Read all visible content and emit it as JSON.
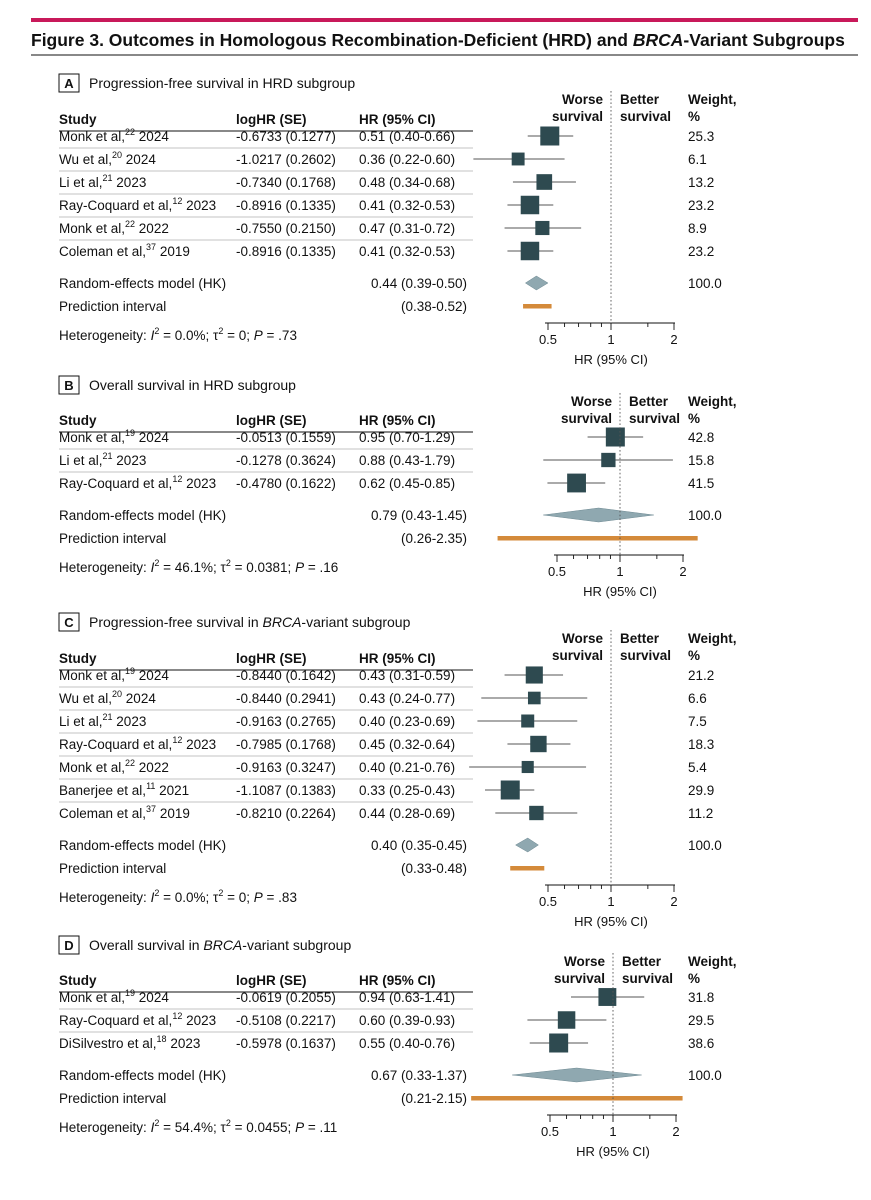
{
  "figure": {
    "title_parts": [
      {
        "text": "Figure 3. Outcomes in Homologous Recombination-Deficient (HRD) and ",
        "italic": false
      },
      {
        "text": "BRCA",
        "italic": true
      },
      {
        "text": "-Variant Subgroups",
        "italic": false
      }
    ],
    "accent_color": "#c8195a"
  },
  "colors": {
    "study_box": "#2e4a50",
    "pooled_diamond": "#8fa8b0",
    "prediction_interval": "#d48a3a"
  },
  "chart_data": [
    {
      "type": "forest",
      "panel_letter": "A",
      "title_parts": [
        {
          "text": "Progression-free survival in HRD subgroup",
          "italic": false
        }
      ],
      "columns": {
        "study": "Study",
        "loghr": "logHR (SE)",
        "hr": "HR (95% CI)",
        "weight": "Weight,",
        "weight_unit": "%"
      },
      "side_labels": {
        "left": [
          "Worse",
          "survival"
        ],
        "right": [
          "Better",
          "survival"
        ]
      },
      "xlabel": "HR (95% CI)",
      "x_scale": "log",
      "xlim": [
        0.34,
        2.25
      ],
      "ticks": [
        0.5,
        1,
        2
      ],
      "tick_labels": [
        "0.5",
        "1",
        "2"
      ],
      "null_value": 1,
      "studies": [
        {
          "author": "Monk et al,",
          "ref": "22",
          "year": " 2024",
          "loghr": "-0.6733 (0.1277)",
          "hr_text": "0.51 (0.40-0.66)",
          "hr": 0.51,
          "lo": 0.4,
          "hi": 0.66,
          "weight": 25.3,
          "weight_text": "25.3"
        },
        {
          "author": "Wu et al,",
          "ref": "20",
          "year": " 2024",
          "loghr": "-1.0217 (0.2602)",
          "hr_text": "0.36 (0.22-0.60)",
          "hr": 0.36,
          "lo": 0.22,
          "hi": 0.6,
          "weight": 6.1,
          "weight_text": "6.1"
        },
        {
          "author": "Li et al,",
          "ref": "21",
          "year": " 2023",
          "loghr": "-0.7340 (0.1768)",
          "hr_text": "0.48 (0.34-0.68)",
          "hr": 0.48,
          "lo": 0.34,
          "hi": 0.68,
          "weight": 13.2,
          "weight_text": "13.2"
        },
        {
          "author": "Ray-Coquard et al,",
          "ref": "12",
          "year": " 2023",
          "loghr": "-0.8916 (0.1335)",
          "hr_text": "0.41 (0.32-0.53)",
          "hr": 0.41,
          "lo": 0.32,
          "hi": 0.53,
          "weight": 23.2,
          "weight_text": "23.2"
        },
        {
          "author": "Monk et al,",
          "ref": "22",
          "year": " 2022",
          "loghr": "-0.7550 (0.2150)",
          "hr_text": "0.47 (0.31-0.72)",
          "hr": 0.47,
          "lo": 0.31,
          "hi": 0.72,
          "weight": 8.9,
          "weight_text": "8.9"
        },
        {
          "author": "Coleman et al,",
          "ref": "37",
          "year": " 2019",
          "loghr": "-0.8916 (0.1335)",
          "hr_text": "0.41 (0.32-0.53)",
          "hr": 0.41,
          "lo": 0.32,
          "hi": 0.53,
          "weight": 23.2,
          "weight_text": "23.2"
        }
      ],
      "pooled": {
        "label": "Random-effects model (HK)",
        "hr_text": "0.44 (0.39-0.50)",
        "hr": 0.44,
        "lo": 0.39,
        "hi": 0.5,
        "weight_text": "100.0"
      },
      "prediction": {
        "label": "Prediction interval",
        "text": "(0.38-0.52)",
        "lo": 0.38,
        "hi": 0.52
      },
      "heterogeneity": {
        "prefix": "Heterogeneity: ",
        "i2_symbol": "I",
        "i2_sup": "2",
        "i2_value": " = 0.0%; ",
        "tau2_symbol": "τ",
        "tau2_sup": "2",
        "tau2_value": " = 0; ",
        "p_symbol": "P",
        "p_value": " = .73"
      }
    },
    {
      "type": "forest",
      "panel_letter": "B",
      "title_parts": [
        {
          "text": "Overall survival in HRD subgroup",
          "italic": false
        }
      ],
      "columns": {
        "study": "Study",
        "loghr": "logHR (SE)",
        "hr": "HR (95% CI)",
        "weight": "Weight,",
        "weight_unit": "%"
      },
      "side_labels": {
        "left": [
          "Worse",
          "survival"
        ],
        "right": [
          "Better",
          "survival"
        ]
      },
      "xlabel": "HR (95% CI)",
      "x_scale": "log",
      "xlim": [
        0.26,
        2.35
      ],
      "ticks": [
        0.5,
        1,
        2
      ],
      "tick_labels": [
        "0.5",
        "1",
        "2"
      ],
      "null_value": 1,
      "studies": [
        {
          "author": "Monk et al,",
          "ref": "19",
          "year": " 2024",
          "loghr": "-0.0513 (0.1559)",
          "hr_text": "0.95 (0.70-1.29)",
          "hr": 0.95,
          "lo": 0.7,
          "hi": 1.29,
          "weight": 42.8,
          "weight_text": "42.8"
        },
        {
          "author": "Li et al,",
          "ref": "21",
          "year": " 2023",
          "loghr": "-0.1278 (0.3624)",
          "hr_text": "0.88 (0.43-1.79)",
          "hr": 0.88,
          "lo": 0.43,
          "hi": 1.79,
          "weight": 15.8,
          "weight_text": "15.8"
        },
        {
          "author": "Ray-Coquard et al,",
          "ref": "12",
          "year": " 2023",
          "loghr": "-0.4780 (0.1622)",
          "hr_text": "0.62 (0.45-0.85)",
          "hr": 0.62,
          "lo": 0.45,
          "hi": 0.85,
          "weight": 41.5,
          "weight_text": "41.5"
        }
      ],
      "pooled": {
        "label": "Random-effects model (HK)",
        "hr_text": "0.79 (0.43-1.45)",
        "hr": 0.79,
        "lo": 0.43,
        "hi": 1.45,
        "weight_text": "100.0"
      },
      "prediction": {
        "label": "Prediction interval",
        "text": "(0.26-2.35)",
        "lo": 0.26,
        "hi": 2.35
      },
      "heterogeneity": {
        "prefix": "Heterogeneity: ",
        "i2_symbol": "I",
        "i2_sup": "2",
        "i2_value": " = 46.1%; ",
        "tau2_symbol": "τ",
        "tau2_sup": "2",
        "tau2_value": " = 0.0381; ",
        "p_symbol": "P",
        "p_value": " = .16"
      }
    },
    {
      "type": "forest",
      "panel_letter": "C",
      "title_parts": [
        {
          "text": "Progression-free survival in ",
          "italic": false
        },
        {
          "text": "BRCA",
          "italic": true
        },
        {
          "text": "-variant subgroup",
          "italic": false
        }
      ],
      "columns": {
        "study": "Study",
        "loghr": "logHR (SE)",
        "hr": "HR (95% CI)",
        "weight": "Weight,",
        "weight_unit": "%"
      },
      "side_labels": {
        "left": [
          "Worse",
          "survival"
        ],
        "right": [
          "Better",
          "survival"
        ]
      },
      "xlabel": "HR (95% CI)",
      "x_scale": "log",
      "xlim": [
        0.21,
        2.25
      ],
      "ticks": [
        0.5,
        1,
        2
      ],
      "tick_labels": [
        "0.5",
        "1",
        "2"
      ],
      "null_value": 1,
      "studies": [
        {
          "author": "Monk et al,",
          "ref": "19",
          "year": " 2024",
          "loghr": "-0.8440 (0.1642)",
          "hr_text": "0.43 (0.31-0.59)",
          "hr": 0.43,
          "lo": 0.31,
          "hi": 0.59,
          "weight": 21.2,
          "weight_text": "21.2"
        },
        {
          "author": "Wu et al,",
          "ref": "20",
          "year": " 2024",
          "loghr": "-0.8440 (0.2941)",
          "hr_text": "0.43 (0.24-0.77)",
          "hr": 0.43,
          "lo": 0.24,
          "hi": 0.77,
          "weight": 6.6,
          "weight_text": "6.6"
        },
        {
          "author": "Li et al,",
          "ref": "21",
          "year": " 2023",
          "loghr": "-0.9163 (0.2765)",
          "hr_text": "0.40 (0.23-0.69)",
          "hr": 0.4,
          "lo": 0.23,
          "hi": 0.69,
          "weight": 7.5,
          "weight_text": "7.5"
        },
        {
          "author": "Ray-Coquard et al,",
          "ref": "12",
          "year": " 2023",
          "loghr": "-0.7985 (0.1768)",
          "hr_text": "0.45 (0.32-0.64)",
          "hr": 0.45,
          "lo": 0.32,
          "hi": 0.64,
          "weight": 18.3,
          "weight_text": "18.3"
        },
        {
          "author": "Monk et al,",
          "ref": "22",
          "year": " 2022",
          "loghr": "-0.9163 (0.3247)",
          "hr_text": "0.40 (0.21-0.76)",
          "hr": 0.4,
          "lo": 0.21,
          "hi": 0.76,
          "weight": 5.4,
          "weight_text": "5.4"
        },
        {
          "author": "Banerjee et al,",
          "ref": "11",
          "year": " 2021",
          "loghr": "-1.1087 (0.1383)",
          "hr_text": "0.33 (0.25-0.43)",
          "hr": 0.33,
          "lo": 0.25,
          "hi": 0.43,
          "weight": 29.9,
          "weight_text": "29.9"
        },
        {
          "author": "Coleman et al,",
          "ref": "37",
          "year": " 2019",
          "loghr": "-0.8210 (0.2264)",
          "hr_text": "0.44 (0.28-0.69)",
          "hr": 0.44,
          "lo": 0.28,
          "hi": 0.69,
          "weight": 11.2,
          "weight_text": "11.2"
        }
      ],
      "pooled": {
        "label": "Random-effects model (HK)",
        "hr_text": "0.40 (0.35-0.45)",
        "hr": 0.4,
        "lo": 0.35,
        "hi": 0.45,
        "weight_text": "100.0"
      },
      "prediction": {
        "label": "Prediction interval",
        "text": "(0.33-0.48)",
        "lo": 0.33,
        "hi": 0.48
      },
      "heterogeneity": {
        "prefix": "Heterogeneity: ",
        "i2_symbol": "I",
        "i2_sup": "2",
        "i2_value": " = 0.0%; ",
        "tau2_symbol": "τ",
        "tau2_sup": "2",
        "tau2_value": " = 0; ",
        "p_symbol": "P",
        "p_value": " = .83"
      }
    },
    {
      "type": "forest",
      "panel_letter": "D",
      "title_parts": [
        {
          "text": "Overall survival in ",
          "italic": false
        },
        {
          "text": "BRCA",
          "italic": true
        },
        {
          "text": "-variant subgroup",
          "italic": false
        }
      ],
      "columns": {
        "study": "Study",
        "loghr": "logHR (SE)",
        "hr": "HR (95% CI)",
        "weight": "Weight,",
        "weight_unit": "%"
      },
      "side_labels": {
        "left": [
          "Worse",
          "survival"
        ],
        "right": [
          "Better",
          "survival"
        ]
      },
      "xlabel": "HR (95% CI)",
      "x_scale": "log",
      "xlim": [
        0.21,
        2.15
      ],
      "ticks": [
        0.5,
        1,
        2
      ],
      "tick_labels": [
        "0.5",
        "1",
        "2"
      ],
      "null_value": 1,
      "studies": [
        {
          "author": "Monk et al,",
          "ref": "19",
          "year": " 2024",
          "loghr": "-0.0619 (0.2055)",
          "hr_text": "0.94 (0.63-1.41)",
          "hr": 0.94,
          "lo": 0.63,
          "hi": 1.41,
          "weight": 31.8,
          "weight_text": "31.8"
        },
        {
          "author": "Ray-Coquard et al,",
          "ref": "12",
          "year": " 2023",
          "loghr": "-0.5108 (0.2217)",
          "hr_text": "0.60 (0.39-0.93)",
          "hr": 0.6,
          "lo": 0.39,
          "hi": 0.93,
          "weight": 29.5,
          "weight_text": "29.5"
        },
        {
          "author": "DiSilvestro et al,",
          "ref": "18",
          "year": " 2023",
          "loghr": "-0.5978 (0.1637)",
          "hr_text": "0.55 (0.40-0.76)",
          "hr": 0.55,
          "lo": 0.4,
          "hi": 0.76,
          "weight": 38.6,
          "weight_text": "38.6"
        }
      ],
      "pooled": {
        "label": "Random-effects model (HK)",
        "hr_text": "0.67 (0.33-1.37)",
        "hr": 0.67,
        "lo": 0.33,
        "hi": 1.37,
        "weight_text": "100.0"
      },
      "prediction": {
        "label": "Prediction interval",
        "text": "(0.21-2.15)",
        "lo": 0.21,
        "hi": 2.15
      },
      "heterogeneity": {
        "prefix": "Heterogeneity: ",
        "i2_symbol": "I",
        "i2_sup": "2",
        "i2_value": " = 54.4%; ",
        "tau2_symbol": "τ",
        "tau2_sup": "2",
        "tau2_value": " = 0.0455; ",
        "p_symbol": "P",
        "p_value": " = .11"
      }
    }
  ]
}
